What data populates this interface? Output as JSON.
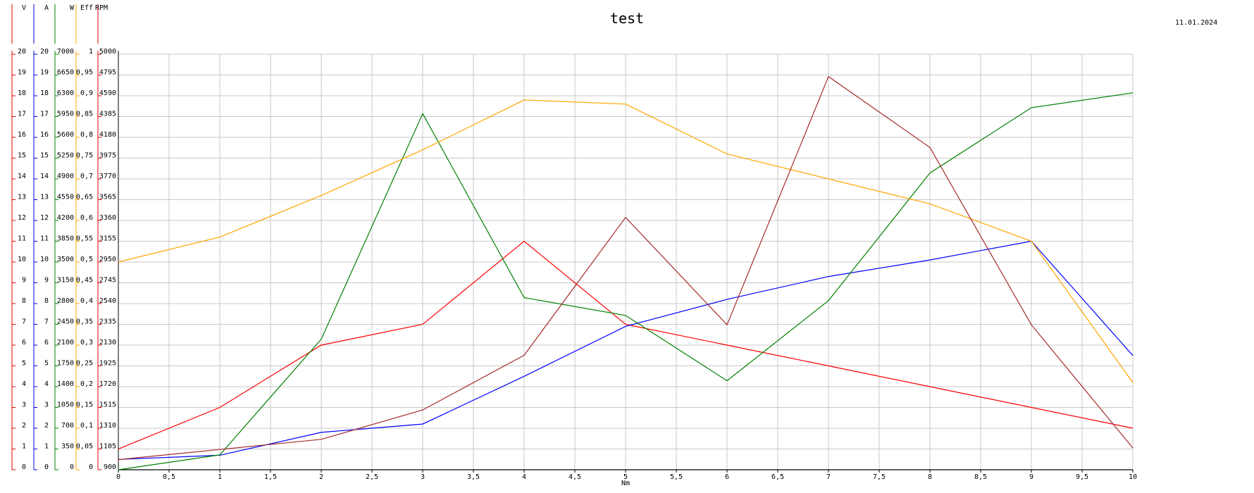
{
  "title": "test",
  "date": "11.01.2024",
  "chart_data": {
    "type": "line",
    "xlabel": "Nm",
    "xlim": [
      0,
      10
    ],
    "x_ticks": [
      "0",
      "0,5",
      "1",
      "1,5",
      "2",
      "2,5",
      "3",
      "3,5",
      "4",
      "4,5",
      "5",
      "5,5",
      "6",
      "6,5",
      "7",
      "7,5",
      "8",
      "8,5",
      "9",
      "9,5",
      "10"
    ],
    "grid": true,
    "axes": [
      {
        "name": "V",
        "color": "#e00000",
        "ticks": [
          "0",
          "1",
          "2",
          "3",
          "4",
          "5",
          "6",
          "7",
          "8",
          "9",
          "10",
          "11",
          "12",
          "13",
          "14",
          "15",
          "16",
          "17",
          "18",
          "19",
          "20"
        ],
        "range": [
          0,
          20
        ]
      },
      {
        "name": "A",
        "color": "#0000e0",
        "ticks": [
          "0",
          "1",
          "2",
          "3",
          "4",
          "5",
          "6",
          "7",
          "8",
          "9",
          "10",
          "11",
          "12",
          "13",
          "14",
          "15",
          "16",
          "17",
          "18",
          "19",
          "20"
        ],
        "range": [
          0,
          20
        ]
      },
      {
        "name": "W",
        "color": "#008000",
        "ticks": [
          "0",
          "350",
          "700",
          "1050",
          "1400",
          "1750",
          "2100",
          "2450",
          "2800",
          "3150",
          "3500",
          "3850",
          "4200",
          "4550",
          "4900",
          "5250",
          "5600",
          "5950",
          "6300",
          "6650",
          "7000"
        ],
        "range": [
          0,
          7000
        ]
      },
      {
        "name": "Eff",
        "color": "#ffa500",
        "ticks": [
          "0",
          "0,05",
          "0,1",
          "0,15",
          "0,2",
          "0,25",
          "0,3",
          "0,35",
          "0,4",
          "0,45",
          "0,5",
          "0,55",
          "0,6",
          "0,65",
          "0,7",
          "0,75",
          "0,8",
          "0,85",
          "0,9",
          "0,95",
          "1"
        ],
        "range": [
          0,
          1
        ]
      },
      {
        "name": "RPM",
        "color": "#e00000",
        "ticks": [
          "900",
          "1105",
          "1310",
          "1515",
          "1720",
          "1925",
          "2130",
          "2335",
          "2540",
          "2745",
          "2950",
          "3155",
          "3360",
          "3565",
          "3770",
          "3975",
          "4180",
          "4385",
          "4590",
          "4795",
          "5000"
        ],
        "range": [
          900,
          5000
        ]
      }
    ],
    "series": [
      {
        "axis": "V",
        "color": "#ff0000",
        "x": [
          0,
          1,
          2,
          3,
          4,
          5,
          6,
          7,
          8,
          9,
          10
        ],
        "values": [
          1,
          3,
          6,
          7,
          11,
          7,
          6,
          5,
          4,
          3,
          2
        ]
      },
      {
        "axis": "A",
        "color": "#0000ff",
        "x": [
          0,
          1,
          2,
          3,
          4,
          5,
          6,
          7,
          8,
          9,
          10
        ],
        "values": [
          0.5,
          0.7,
          1.8,
          2.2,
          4.5,
          6.9,
          8.2,
          9.3,
          10.1,
          11.0,
          5.5
        ]
      },
      {
        "axis": "W",
        "color": "#008000",
        "x": [
          0,
          1,
          2,
          3,
          4,
          5,
          6,
          7,
          8,
          9,
          10
        ],
        "values": [
          0,
          250,
          2200,
          6000,
          2900,
          2600,
          1500,
          2850,
          5000,
          6100,
          6350
        ]
      },
      {
        "axis": "Eff",
        "color": "#ffa500",
        "x": [
          0,
          1,
          2,
          3,
          4,
          5,
          6,
          7,
          8,
          9,
          10
        ],
        "values": [
          0.5,
          0.56,
          0.66,
          0.77,
          0.89,
          0.88,
          0.76,
          0.7,
          0.64,
          0.55,
          0.21
        ]
      },
      {
        "axis": "RPM",
        "color": "#a52a2a",
        "x": [
          0,
          1,
          2,
          3,
          4,
          5,
          6,
          7,
          8,
          9,
          10
        ],
        "values": [
          1000,
          1100,
          1200,
          1490,
          2030,
          3390,
          2330,
          4780,
          4080,
          2330,
          1115
        ]
      }
    ]
  }
}
